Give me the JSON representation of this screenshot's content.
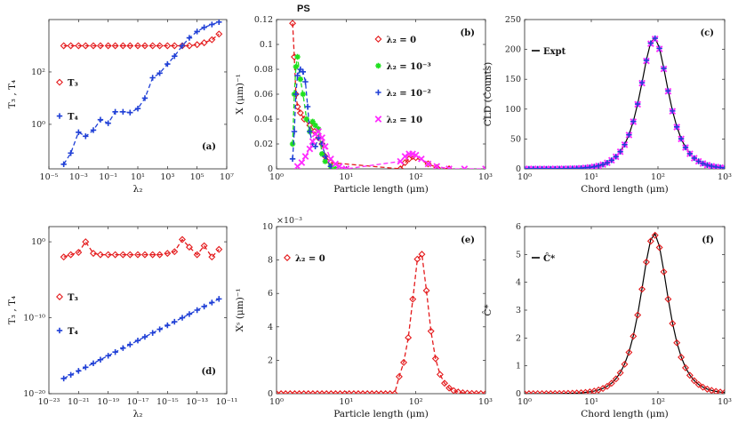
{
  "figure_title": "PS",
  "colors": {
    "red": "#e41a1c",
    "blue": "#1f3fd6",
    "green": "#1fe01f",
    "magenta": "#ff2bff",
    "black": "#000000"
  },
  "chart_data": [
    {
      "id": "a",
      "type": "line",
      "panel_label": "(a)",
      "xscale": "log",
      "yscale": "log",
      "xlabel": "λ₂",
      "ylabel": "T₃ , T₄",
      "xlim": [
        1e-05,
        10000000.0
      ],
      "ylim": [
        0.02,
        10000.0
      ],
      "xticks": [
        1e-05,
        0.001,
        0.1,
        10.0,
        1000.0,
        100000.0,
        10000000.0
      ],
      "xticklabels": [
        "10^-5",
        "10^-3",
        "10^-1",
        "10^1",
        "10^3",
        "10^5",
        "10^7"
      ],
      "yticks": [
        1,
        100
      ],
      "yticklabels": [
        "10^0",
        "10^2"
      ],
      "legend_loc": "left-middle",
      "series": [
        {
          "name": "T₃",
          "color": "red",
          "marker": "diamond",
          "line": "dashed",
          "x": [
            0.0001,
            0.0003,
            0.001,
            0.003,
            0.01,
            0.03,
            0.1,
            0.3,
            1,
            3,
            10,
            30,
            100,
            300,
            1000.0,
            3000.0,
            10000.0,
            30000.0,
            100000.0,
            300000.0,
            1000000.0,
            3000000.0
          ],
          "y": [
            1000,
            1000,
            1000,
            1000,
            1000,
            1000,
            1000,
            1000,
            1000,
            1000,
            1000,
            1000,
            1000,
            1000,
            1000,
            1000,
            1000,
            1000,
            1100,
            1300,
            1700,
            2800
          ]
        },
        {
          "name": "T₄",
          "color": "blue",
          "marker": "plus",
          "line": "dashed",
          "x": [
            0.0001,
            0.0003,
            0.001,
            0.003,
            0.01,
            0.03,
            0.1,
            0.3,
            1,
            3,
            10,
            30,
            100,
            300,
            1000.0,
            3000.0,
            10000.0,
            30000.0,
            100000.0,
            300000.0,
            1000000.0,
            3000000.0
          ],
          "y": [
            0.03,
            0.08,
            0.5,
            0.35,
            0.6,
            1.5,
            1.1,
            3,
            3,
            2.8,
            4,
            10,
            60,
            90,
            200,
            400,
            1000,
            2000,
            3500,
            5000,
            6500,
            8000
          ]
        }
      ]
    },
    {
      "id": "b",
      "type": "line",
      "panel_label": "(b)",
      "xscale": "log",
      "yscale": "linear",
      "xlabel": "Particle length (μm)",
      "ylabel": "X (μm)⁻¹",
      "xlim": [
        1,
        1000
      ],
      "ylim": [
        0,
        0.12
      ],
      "xticks": [
        1,
        10,
        100,
        1000
      ],
      "xticklabels": [
        "10^0",
        "10^1",
        "10^2",
        "10^3"
      ],
      "yticks": [
        0,
        0.02,
        0.04,
        0.06,
        0.08,
        0.1,
        0.12
      ],
      "yticklabels": [
        "0",
        "0.02",
        "0.04",
        "0.06",
        "0.08",
        "0.1",
        "0.12"
      ],
      "legend_loc": "right",
      "series": [
        {
          "name": "λ₂ = 0",
          "color": "red",
          "marker": "diamond",
          "line": "dashed",
          "x": [
            1.7,
            1.8,
            1.9,
            2.0,
            2.2,
            2.5,
            3.0,
            3.5,
            4.0,
            4.5,
            5,
            6,
            60,
            70,
            80,
            90,
            100,
            150,
            200,
            300
          ],
          "y": [
            0.117,
            0.09,
            0.06,
            0.05,
            0.045,
            0.04,
            0.035,
            0.03,
            0.025,
            0.02,
            0.01,
            0.005,
            0,
            0.005,
            0.008,
            0.01,
            0.009,
            0.004,
            0.001,
            0
          ]
        },
        {
          "name": "λ₂ = 10⁻³",
          "color": "green",
          "marker": "asterisk",
          "line": "dashed",
          "x": [
            1.7,
            1.8,
            1.9,
            2.0,
            2.2,
            2.4,
            2.7,
            3.0,
            3.3,
            3.6,
            4.0,
            4.5,
            5,
            6,
            7
          ],
          "y": [
            0.02,
            0.06,
            0.082,
            0.09,
            0.072,
            0.06,
            0.04,
            0.03,
            0.038,
            0.035,
            0.032,
            0.012,
            0.006,
            0.002,
            0
          ]
        },
        {
          "name": "λ₂ = 10⁻²",
          "color": "blue",
          "marker": "plus",
          "line": "dashed",
          "x": [
            1.7,
            1.8,
            1.9,
            2.0,
            2.2,
            2.4,
            2.6,
            2.8,
            3.0,
            3.3,
            3.6,
            4.0,
            4.5,
            5,
            6
          ],
          "y": [
            0.008,
            0.03,
            0.06,
            0.075,
            0.08,
            0.078,
            0.07,
            0.05,
            0.03,
            0.02,
            0.018,
            0.025,
            0.02,
            0.01,
            0.002
          ]
        },
        {
          "name": "λ₂ = 10",
          "color": "magenta",
          "marker": "cross",
          "line": "dashed",
          "x": [
            2.0,
            2.3,
            2.6,
            3.0,
            3.3,
            3.6,
            4.0,
            4.5,
            5,
            6,
            7,
            8,
            10,
            60,
            70,
            80,
            90,
            100,
            120,
            150,
            200,
            300,
            500,
            1000
          ],
          "y": [
            0.002,
            0.005,
            0.01,
            0.016,
            0.022,
            0.028,
            0.03,
            0.025,
            0.018,
            0.008,
            0.004,
            0.002,
            0,
            0.006,
            0.01,
            0.012,
            0.012,
            0.011,
            0.008,
            0.004,
            0.002,
            0,
            0,
            0
          ]
        }
      ]
    },
    {
      "id": "c",
      "type": "line",
      "panel_label": "(c)",
      "xscale": "log",
      "yscale": "linear",
      "xlabel": "Chord length (μm)",
      "ylabel": "CLD (Counts)",
      "xlim": [
        1,
        1000
      ],
      "ylim": [
        0,
        250
      ],
      "xticks": [
        1,
        10,
        100,
        1000
      ],
      "xticklabels": [
        "10^0",
        "10^1",
        "10^2",
        "10^3"
      ],
      "yticks": [
        0,
        50,
        100,
        150,
        200,
        250
      ],
      "yticklabels": [
        "0",
        "50",
        "100",
        "150",
        "200",
        "250"
      ],
      "legend_loc": "top-left",
      "series": [
        {
          "name": "Expt",
          "color": "black",
          "marker": "none",
          "line": "solid",
          "shape": "bell",
          "peak_x": 88,
          "peak_y": 220,
          "width_decades": 0.3
        },
        {
          "name": "",
          "color": "magenta",
          "marker": "cross",
          "line": "none",
          "shape": "bell",
          "peak_x": 88,
          "peak_y": 218,
          "width_decades": 0.3
        },
        {
          "name": "",
          "color": "blue",
          "marker": "plus",
          "line": "none",
          "shape": "bell",
          "peak_x": 88,
          "peak_y": 219,
          "width_decades": 0.3
        }
      ]
    },
    {
      "id": "d",
      "type": "line",
      "panel_label": "(d)",
      "xscale": "log",
      "yscale": "log",
      "xlabel": "λ₂",
      "ylabel": "T₃ , T₄",
      "xlim": [
        1e-23,
        1e-11
      ],
      "ylim": [
        1e-20,
        100.0
      ],
      "xticks": [
        1e-23,
        1e-21,
        1e-19,
        1e-17,
        1e-15,
        1e-13,
        1e-11
      ],
      "xticklabels": [
        "10^-23",
        "10^-21",
        "10^-19",
        "10^-17",
        "10^-15",
        "10^-13",
        "10^-11"
      ],
      "yticks": [
        1e-20,
        1e-10,
        1
      ],
      "yticklabels": [
        "10^-20",
        "10^-10",
        "10^0"
      ],
      "legend_loc": "left-middle",
      "series": [
        {
          "name": "T₃",
          "color": "red",
          "marker": "diamond",
          "line": "dashed",
          "x": [
            1e-22,
            3e-22,
            1e-21,
            3e-21,
            1e-20,
            3e-20,
            1e-19,
            3e-19,
            1e-18,
            3e-18,
            1e-17,
            3e-17,
            1e-16,
            3e-16,
            1e-15,
            3e-15,
            1e-14,
            3e-14,
            1e-13,
            3e-13,
            1e-12,
            3e-12
          ],
          "y": [
            0.01,
            0.02,
            0.04,
            1.0,
            0.03,
            0.02,
            0.02,
            0.02,
            0.02,
            0.02,
            0.02,
            0.02,
            0.02,
            0.02,
            0.03,
            0.05,
            2.0,
            0.2,
            0.02,
            0.3,
            0.01,
            0.1
          ]
        },
        {
          "name": "T₄",
          "color": "blue",
          "marker": "plus",
          "line": "dashed",
          "x": [
            1e-22,
            3e-22,
            1e-21,
            3e-21,
            1e-20,
            3e-20,
            1e-19,
            3e-19,
            1e-18,
            3e-18,
            1e-17,
            3e-17,
            1e-16,
            3e-16,
            1e-15,
            3e-15,
            1e-14,
            3e-14,
            1e-13,
            3e-13,
            1e-12,
            3e-12
          ],
          "y": [
            1e-18,
            3e-18,
            1e-17,
            3e-17,
            1e-16,
            3e-16,
            1e-15,
            3e-15,
            1e-14,
            3e-14,
            1e-13,
            3e-13,
            1e-12,
            3e-12,
            1e-11,
            3e-11,
            1e-10,
            3e-10,
            1e-09,
            3e-09,
            1e-08,
            3e-08
          ]
        }
      ]
    },
    {
      "id": "e",
      "type": "line",
      "panel_label": "(e)",
      "xscale": "log",
      "yscale": "linear",
      "xlabel": "Particle length (μm)",
      "ylabel": "Xˢ (μm)⁻¹",
      "exponent_label": "×10⁻³",
      "xlim": [
        1,
        1000
      ],
      "ylim": [
        0,
        10
      ],
      "xticks": [
        1,
        10,
        100,
        1000
      ],
      "xticklabels": [
        "10^0",
        "10^1",
        "10^2",
        "10^3"
      ],
      "yticks": [
        0,
        2,
        4,
        6,
        8,
        10
      ],
      "yticklabels": [
        "0",
        "2",
        "4",
        "6",
        "8",
        "10"
      ],
      "legend_loc": "top-left",
      "series": [
        {
          "name": "λ₂ = 0",
          "color": "red",
          "marker": "diamond",
          "line": "dashed",
          "shape": "bell_cut",
          "peak_x": 115,
          "peak_y": 8.6,
          "width_decades": 0.17,
          "cut_x": 55
        }
      ]
    },
    {
      "id": "f",
      "type": "line",
      "panel_label": "(f)",
      "xscale": "log",
      "yscale": "linear",
      "xlabel": "Chord length (μm)",
      "ylabel": "Ĉ*",
      "xlim": [
        1,
        1000
      ],
      "ylim": [
        0,
        6
      ],
      "xticks": [
        1,
        10,
        100,
        1000
      ],
      "xticklabels": [
        "10^0",
        "10^1",
        "10^2",
        "10^3"
      ],
      "yticks": [
        0,
        1,
        2,
        3,
        4,
        5,
        6
      ],
      "yticklabels": [
        "0",
        "1",
        "2",
        "3",
        "4",
        "5",
        "6"
      ],
      "legend_loc": "top-left",
      "series": [
        {
          "name": "Ĉ*",
          "color": "black",
          "marker": "none",
          "line": "solid",
          "shape": "bell",
          "peak_x": 88,
          "peak_y": 5.75,
          "width_decades": 0.3
        },
        {
          "name": "",
          "color": "red",
          "marker": "diamond",
          "line": "none",
          "shape": "bell",
          "peak_x": 88,
          "peak_y": 5.7,
          "width_decades": 0.3
        }
      ]
    }
  ]
}
